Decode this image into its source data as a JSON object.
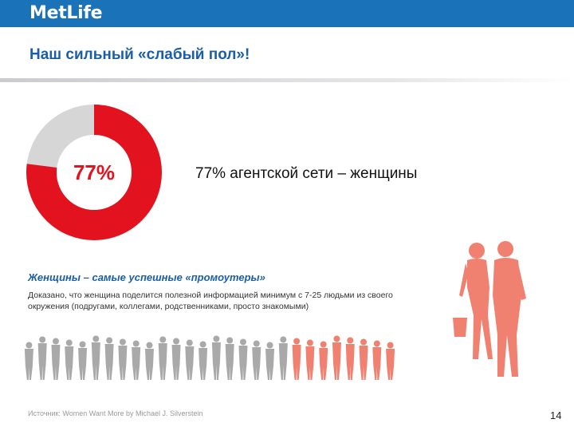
{
  "logo": "MetLife",
  "title": "Наш сильный «слабый пол»!",
  "donut": {
    "label": "77%",
    "value_percent": 77,
    "colors": {
      "primary": "#e2131e",
      "rest": "#d6d6d6",
      "label": "#e2131e"
    }
  },
  "stat_text": "77% агентской сети – женщины",
  "subhead": "Женщины – самые успешные «промоутеры»",
  "body_text": "Доказано, что женщина поделится полезной информацией минимум с 7-25 людьми из своего окружения (подругами, коллегами, родственниками, просто знакомыми)",
  "crowd": {
    "gray_count": 20,
    "orange_count": 8,
    "colors": {
      "gray": "#a9a9a9",
      "orange": "#f08170"
    }
  },
  "couple_color": "#f08170",
  "brand_color": "#1a73b8",
  "source": "Источник: Women Want More by Michael J. Silverstein",
  "page_number": "14"
}
